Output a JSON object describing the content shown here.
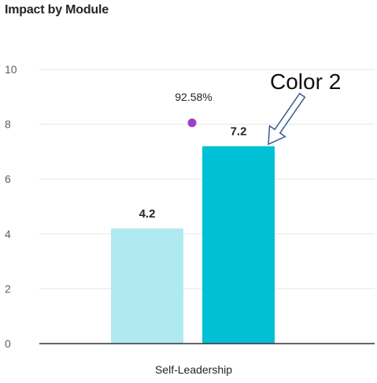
{
  "colors": {
    "series1": "#b0eaf1",
    "series2": "#00c0d6",
    "marker": "#9b3fc7",
    "gridline": "#e6e6e6",
    "axis": "#333333",
    "arrow": "#3a5a8c"
  },
  "chart_data": {
    "type": "bar",
    "title": "Impact by Module",
    "categories": [
      "Self-Leadership"
    ],
    "series": [
      {
        "values": [
          4.2
        ]
      },
      {
        "values": [
          7.2
        ]
      }
    ],
    "data_labels": [
      "4.2",
      "7.2"
    ],
    "ylim": [
      0,
      10
    ],
    "yticks": [
      0,
      2,
      4,
      6,
      8,
      10
    ],
    "grid": true,
    "marker_point": {
      "value": 8.05,
      "label": "92.58%"
    },
    "annotation": {
      "text": "Color 2",
      "target_series": 1
    }
  }
}
